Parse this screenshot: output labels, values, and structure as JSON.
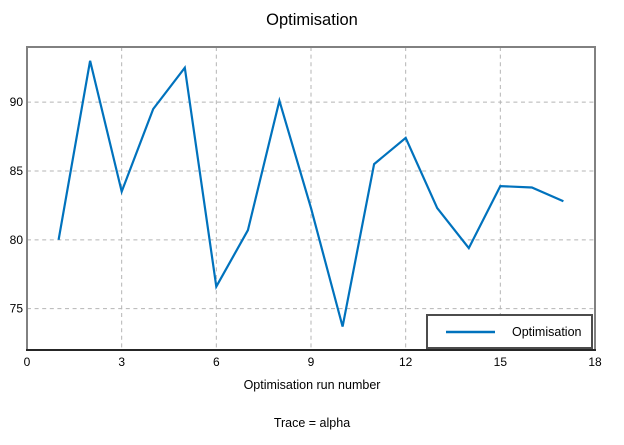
{
  "figure": {
    "background": "#ffffff"
  },
  "chart_data": {
    "type": "line",
    "title": "Optimisation",
    "xlabel": "Optimisation run number",
    "ylabel": "",
    "subtitle": "Trace = alpha",
    "x": [
      1,
      2,
      3,
      4,
      5,
      6,
      7,
      8,
      9,
      10,
      11,
      12,
      13,
      14,
      15,
      16,
      17
    ],
    "series": [
      {
        "name": "Optimisation",
        "color": "#0072BD",
        "values": [
          80.0,
          93.0,
          83.5,
          89.5,
          92.5,
          76.6,
          80.7,
          90.1,
          82.3,
          73.7,
          85.5,
          87.4,
          82.3,
          79.4,
          83.9,
          83.8,
          82.8
        ]
      }
    ],
    "xlim": [
      0,
      18
    ],
    "ylim": [
      72,
      94
    ],
    "xticks": [
      0,
      3,
      6,
      9,
      12,
      15,
      18
    ],
    "yticks": [
      75,
      80,
      85,
      90
    ],
    "grid": true,
    "legend": {
      "position": "bottom-right",
      "entries": [
        "Optimisation"
      ]
    },
    "colors": {
      "grid": "#b5b5b5",
      "box_border": "#818181",
      "axis_line": "#262626",
      "legend_border": "#4c4c4c",
      "text": "#000000"
    }
  }
}
